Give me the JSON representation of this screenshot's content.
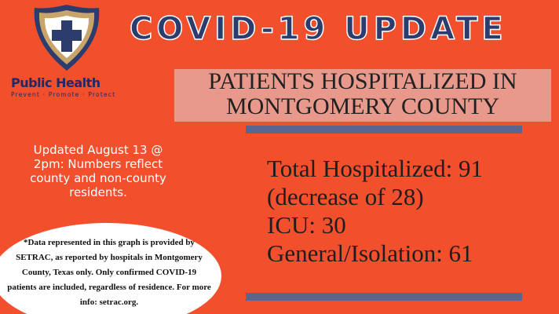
{
  "logo": {
    "name": "Public Health",
    "tagline": "Prevent · Promote · Protect"
  },
  "title": "COVID-19 UPDATE",
  "subtitle": [
    "PATIENTS HOSPITALIZED IN",
    "MONTGOMERY COUNTY"
  ],
  "update_note": "Updated August 13 @ 2pm: Numbers reflect county and non-county residents.",
  "stats": [
    "Total Hospitalized: 91",
    "(decrease of 28)",
    "ICU: 30",
    "General/Isolation: 61"
  ],
  "disclaimer": "*Data represented in this graph is provided by SETRAC, as reported by hospitals in Montgomery County, Texas only. Only confirmed COVID-19 patients are included, regardless of residence. For more info: setrac.org."
}
